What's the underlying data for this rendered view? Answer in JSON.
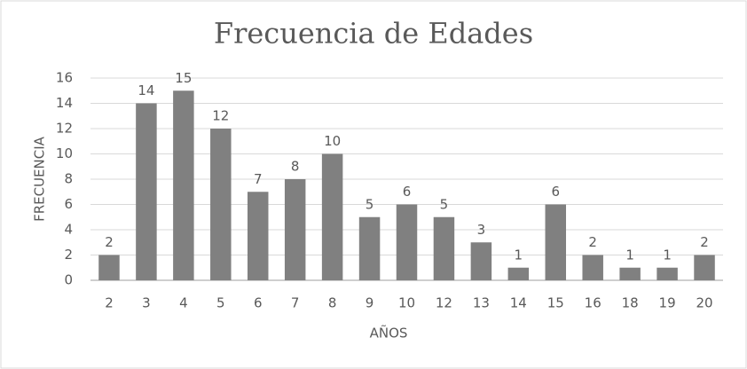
{
  "chart_data": {
    "type": "bar",
    "title": "Frecuencia de Edades",
    "x_label": "AÑOS",
    "y_label": "FRECUENCIA",
    "categories": [
      "2",
      "3",
      "4",
      "5",
      "6",
      "7",
      "8",
      "9",
      "10",
      "12",
      "13",
      "14",
      "15",
      "16",
      "18",
      "19",
      "20"
    ],
    "values": [
      2,
      14,
      15,
      12,
      7,
      8,
      10,
      5,
      6,
      5,
      3,
      1,
      6,
      2,
      1,
      1,
      2
    ],
    "color": "#808080",
    "ylim": [
      0,
      16
    ],
    "yticks": [
      0,
      2,
      4,
      6,
      8,
      10,
      12,
      14,
      16
    ],
    "grid": true
  }
}
